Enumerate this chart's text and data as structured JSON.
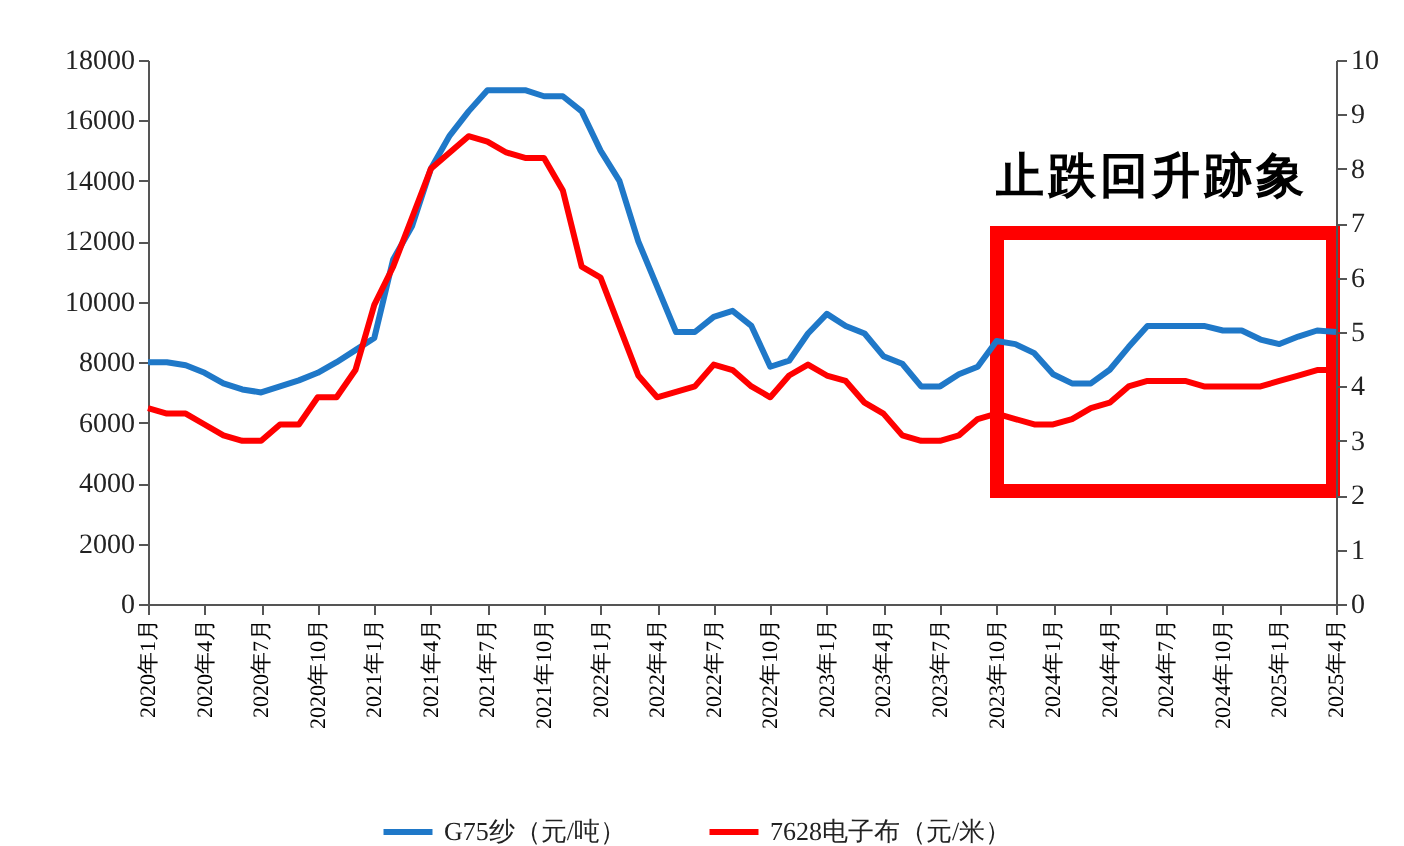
{
  "chart_data": {
    "type": "line",
    "categories": [
      "2020年1月",
      null,
      null,
      "2020年4月",
      null,
      null,
      "2020年7月",
      null,
      null,
      "2020年10月",
      null,
      null,
      "2021年1月",
      null,
      null,
      "2021年4月",
      null,
      null,
      "2021年7月",
      null,
      null,
      "2021年10月",
      null,
      null,
      "2022年1月",
      null,
      null,
      "2022年4月",
      null,
      null,
      "2022年7月",
      null,
      null,
      "2022年10月",
      null,
      null,
      "2023年1月",
      null,
      null,
      "2023年4月",
      null,
      null,
      "2023年7月",
      null,
      null,
      "2023年10月",
      null,
      null,
      "2024年1月",
      null,
      null,
      "2024年4月",
      null,
      null,
      "2024年7月",
      null,
      null,
      "2024年10月",
      null,
      null,
      "2025年1月",
      null,
      null,
      "2025年4月"
    ],
    "series": [
      {
        "name": "G75纱（元/吨）",
        "color": "#1f78c8",
        "values": [
          8000,
          8000,
          7900,
          7650,
          7300,
          7100,
          7000,
          7200,
          7400,
          7650,
          8000,
          8400,
          8800,
          11400,
          12500,
          14400,
          15500,
          16300,
          17000,
          17000,
          17000,
          16800,
          16800,
          16300,
          15000,
          14000,
          12000,
          10500,
          9000,
          9000,
          9500,
          9700,
          9200,
          7850,
          8050,
          8950,
          9600,
          9200,
          8950,
          8200,
          7950,
          7200,
          7200,
          7600,
          7850,
          8700,
          8600,
          8300,
          7600,
          7300,
          7300,
          7750,
          8500,
          9200,
          9200,
          9200,
          9200,
          9050,
          9050,
          8750,
          8600,
          8850,
          9050,
          9000
        ]
      },
      {
        "name": "7628电子布（元/米）",
        "color": "#ff0000",
        "axis": "y2",
        "values": [
          3.6,
          3.5,
          3.5,
          3.3,
          3.1,
          3.0,
          3.0,
          3.3,
          3.3,
          3.8,
          3.8,
          4.3,
          5.5,
          6.2,
          7.1,
          8.0,
          8.3,
          8.6,
          8.5,
          8.3,
          8.2,
          8.2,
          7.6,
          6.2,
          6.0,
          5.1,
          4.2,
          3.8,
          3.9,
          4.0,
          4.4,
          4.3,
          4.0,
          3.8,
          4.2,
          4.4,
          4.2,
          4.1,
          3.7,
          3.5,
          3.1,
          3.0,
          3.0,
          3.1,
          3.4,
          3.5,
          3.4,
          3.3,
          3.3,
          3.4,
          3.6,
          3.7,
          4.0,
          4.1,
          4.1,
          4.1,
          4.0,
          4.0,
          4.0,
          4.0,
          4.1,
          4.2,
          4.3,
          4.3
        ]
      }
    ],
    "ylim": [
      0,
      18000
    ],
    "yticks": [
      0,
      2000,
      4000,
      6000,
      8000,
      10000,
      12000,
      14000,
      16000,
      18000
    ],
    "y2lim": [
      0,
      10
    ],
    "y2ticks": [
      0,
      1,
      2,
      3,
      4,
      5,
      6,
      7,
      8,
      9,
      10
    ],
    "legend": "bottom",
    "annotations": [
      "止跌回升跡象"
    ]
  }
}
